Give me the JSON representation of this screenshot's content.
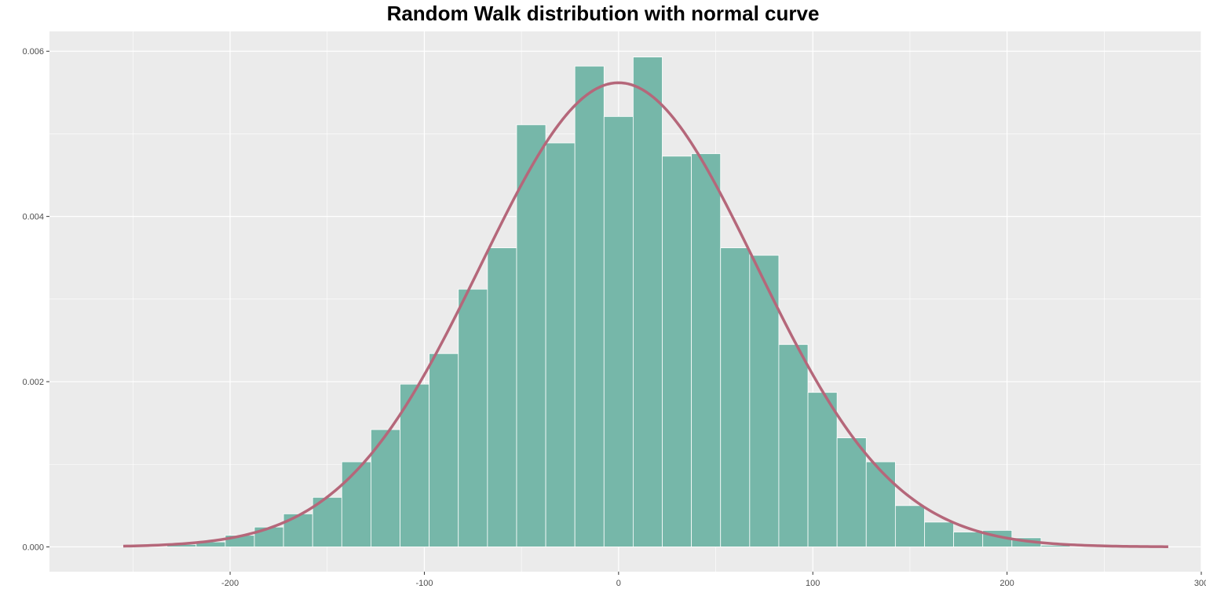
{
  "chart_data": {
    "type": "bar",
    "title": "Random Walk distribution with normal curve",
    "xlabel": "",
    "ylabel": "",
    "xlim": [
      -293,
      300
    ],
    "ylim": [
      -0.0003,
      0.00624
    ],
    "x_ticks": [
      -200,
      -100,
      0,
      100,
      200,
      300
    ],
    "x_tick_labels": [
      "-200",
      "-100",
      "0",
      "100",
      "200",
      "300"
    ],
    "y_ticks": [
      0,
      0.002,
      0.004,
      0.006
    ],
    "y_tick_labels": [
      "0.000",
      "0.002",
      "0.004",
      "0.006"
    ],
    "grid": true,
    "bin_width": 15,
    "bins": [
      {
        "x": -255,
        "density": 0.0
      },
      {
        "x": -240,
        "density": 0.0
      },
      {
        "x": -225,
        "density": 3e-05
      },
      {
        "x": -210,
        "density": 6e-05
      },
      {
        "x": -195,
        "density": 0.00014
      },
      {
        "x": -180,
        "density": 0.00024
      },
      {
        "x": -165,
        "density": 0.0004
      },
      {
        "x": -150,
        "density": 0.0006
      },
      {
        "x": -135,
        "density": 0.00103
      },
      {
        "x": -120,
        "density": 0.00142
      },
      {
        "x": -105,
        "density": 0.00197
      },
      {
        "x": -90,
        "density": 0.00234
      },
      {
        "x": -75,
        "density": 0.00312
      },
      {
        "x": -60,
        "density": 0.00362
      },
      {
        "x": -45,
        "density": 0.00511
      },
      {
        "x": -30,
        "density": 0.00489
      },
      {
        "x": -15,
        "density": 0.00582
      },
      {
        "x": 0,
        "density": 0.00521
      },
      {
        "x": 15,
        "density": 0.00593
      },
      {
        "x": 30,
        "density": 0.00473
      },
      {
        "x": 45,
        "density": 0.00476
      },
      {
        "x": 60,
        "density": 0.00362
      },
      {
        "x": 75,
        "density": 0.00353
      },
      {
        "x": 90,
        "density": 0.00245
      },
      {
        "x": 105,
        "density": 0.00187
      },
      {
        "x": 120,
        "density": 0.00132
      },
      {
        "x": 135,
        "density": 0.00103
      },
      {
        "x": 150,
        "density": 0.0005
      },
      {
        "x": 165,
        "density": 0.0003
      },
      {
        "x": 180,
        "density": 0.00018
      },
      {
        "x": 195,
        "density": 0.0002
      },
      {
        "x": 210,
        "density": 0.00011
      },
      {
        "x": 225,
        "density": 2e-05
      },
      {
        "x": 240,
        "density": 0.0
      },
      {
        "x": 255,
        "density": 0.0
      },
      {
        "x": 270,
        "density": 0.0
      }
    ],
    "normal_curve": {
      "mean": 0,
      "sd": 71,
      "x_range": [
        -255,
        283
      ]
    },
    "colors": {
      "panel_background": "#ebebeb",
      "grid": "#ffffff",
      "bar_fill": "#76b7a9",
      "bar_outline": "#ffffff",
      "curve": "#b5677a"
    }
  }
}
